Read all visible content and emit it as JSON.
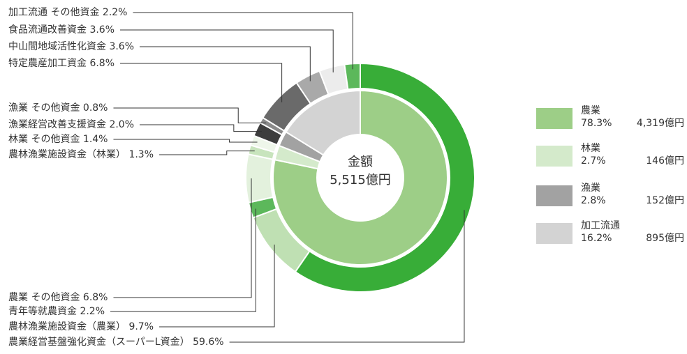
{
  "chart_data": {
    "type": "nested-donut",
    "title": "金額",
    "subtitle": "5,515億円",
    "inner": {
      "categories": [
        "農業",
        "林業",
        "漁業",
        "加工流通"
      ],
      "values": [
        78.3,
        2.7,
        2.8,
        16.2
      ],
      "value_labels": [
        "78.3%",
        "2.7%",
        "2.8%",
        "16.2%"
      ],
      "amounts": [
        4319,
        146,
        152,
        895
      ],
      "amount_labels": [
        "4,319億円",
        "146億円",
        "152億円",
        "895億円"
      ],
      "colors": [
        "#9dce87",
        "#d4eacb",
        "#a2a2a2",
        "#d3d3d3"
      ]
    },
    "outer": {
      "categories": [
        "農業経営基盤強化資金（スーパーL資金）",
        "農林漁業施設資金（農業）",
        "青年等就農資金",
        "農業 その他資金",
        "農林漁業施設資金（林業）",
        "林業 その他資金",
        "漁業経営改善支援資金",
        "漁業 その他資金",
        "特定農産加工資金",
        "中山間地域活性化資金",
        "食品流通改善資金",
        "加工流通 その他資金"
      ],
      "values": [
        59.6,
        9.7,
        2.2,
        6.8,
        1.3,
        1.4,
        2.0,
        0.8,
        6.8,
        3.6,
        3.6,
        2.2
      ],
      "value_labels": [
        "59.6%",
        "9.7%",
        "2.2%",
        "6.8%",
        "1.3%",
        "1.4%",
        "2.0%",
        "0.8%",
        "6.8%",
        "3.6%",
        "3.6%",
        "2.2%"
      ],
      "colors": [
        "#38ad38",
        "#bfe0b3",
        "#5cb85b",
        "#e3f1dd",
        "#c8e4bd",
        "#eef6ea",
        "#3d3d3d",
        "#8a8a8a",
        "#6a6a6a",
        "#a9a9a9",
        "#ececec",
        "#5cb85b"
      ]
    }
  }
}
